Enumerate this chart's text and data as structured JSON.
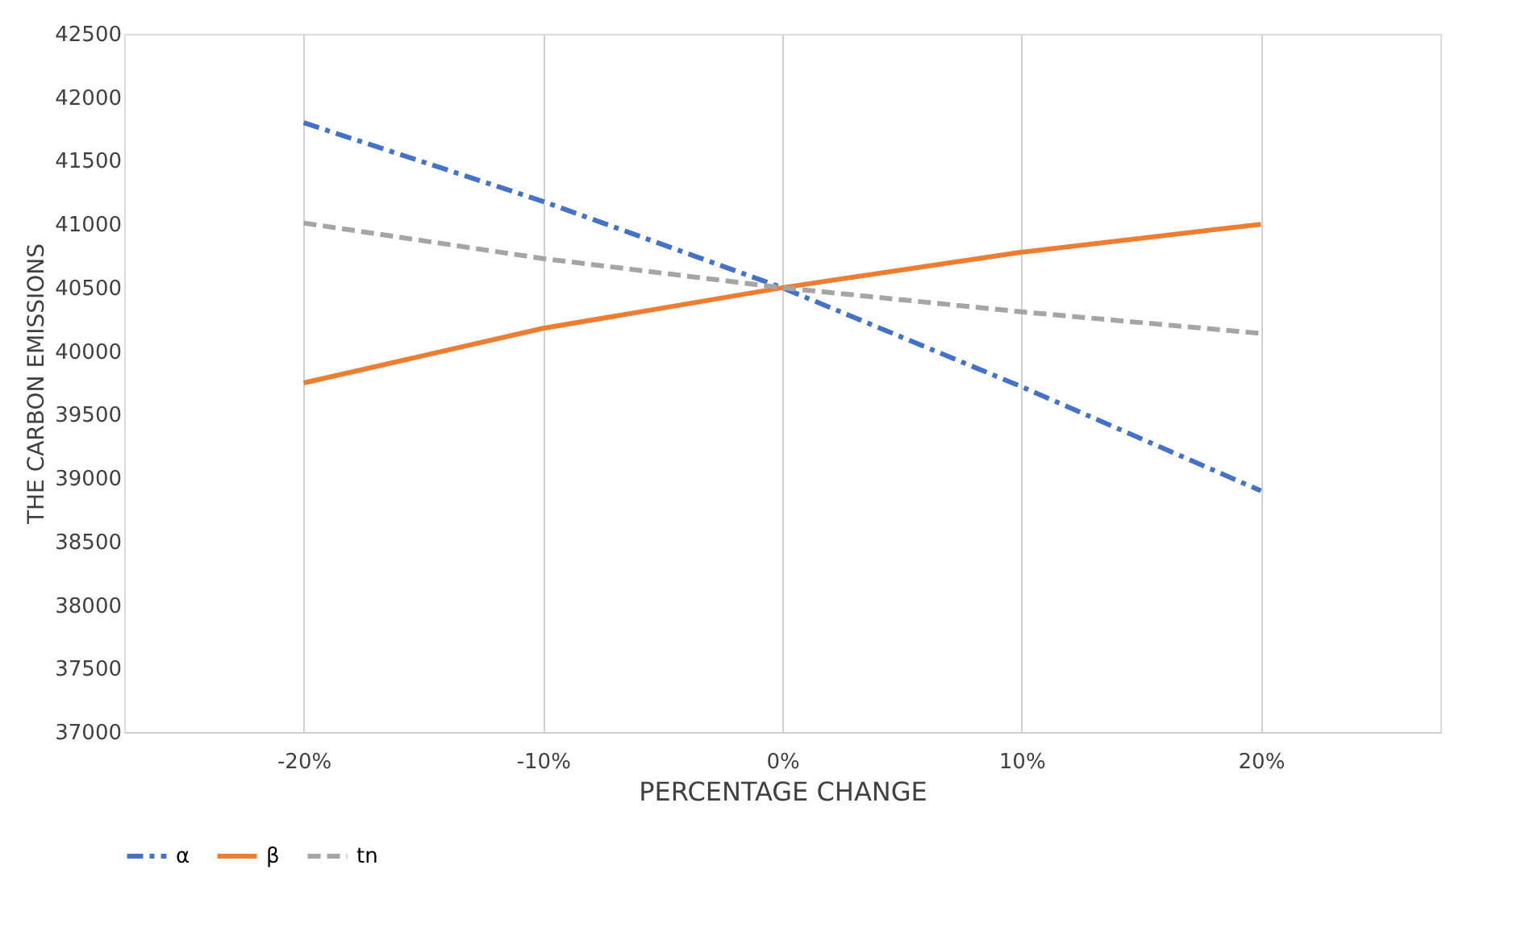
{
  "chart_data": {
    "type": "line",
    "xlabel": "PERCENTAGE CHANGE",
    "ylabel": "THE CARBON EMISSIONS",
    "categories": [
      "-20%",
      "-10%",
      "0%",
      "10%",
      "20%"
    ],
    "series": [
      {
        "name": "α",
        "color": "#4472c4",
        "line_style": "dashdot",
        "values": [
          41800,
          41180,
          40500,
          39720,
          38900
        ]
      },
      {
        "name": "β",
        "color": "#ed7d31",
        "line_style": "solid",
        "values": [
          39750,
          40180,
          40500,
          40780,
          41000
        ]
      },
      {
        "name": "tn",
        "color": "#a5a5a5",
        "line_style": "dashed",
        "values": [
          41010,
          40730,
          40500,
          40310,
          40140
        ]
      }
    ],
    "ylim": [
      37000,
      42500
    ],
    "yticks": [
      37000,
      37500,
      38000,
      38500,
      39000,
      39500,
      40000,
      40500,
      41000,
      41500,
      42000,
      42500
    ],
    "grid": "x",
    "legend": "bottom",
    "marker": "none"
  }
}
